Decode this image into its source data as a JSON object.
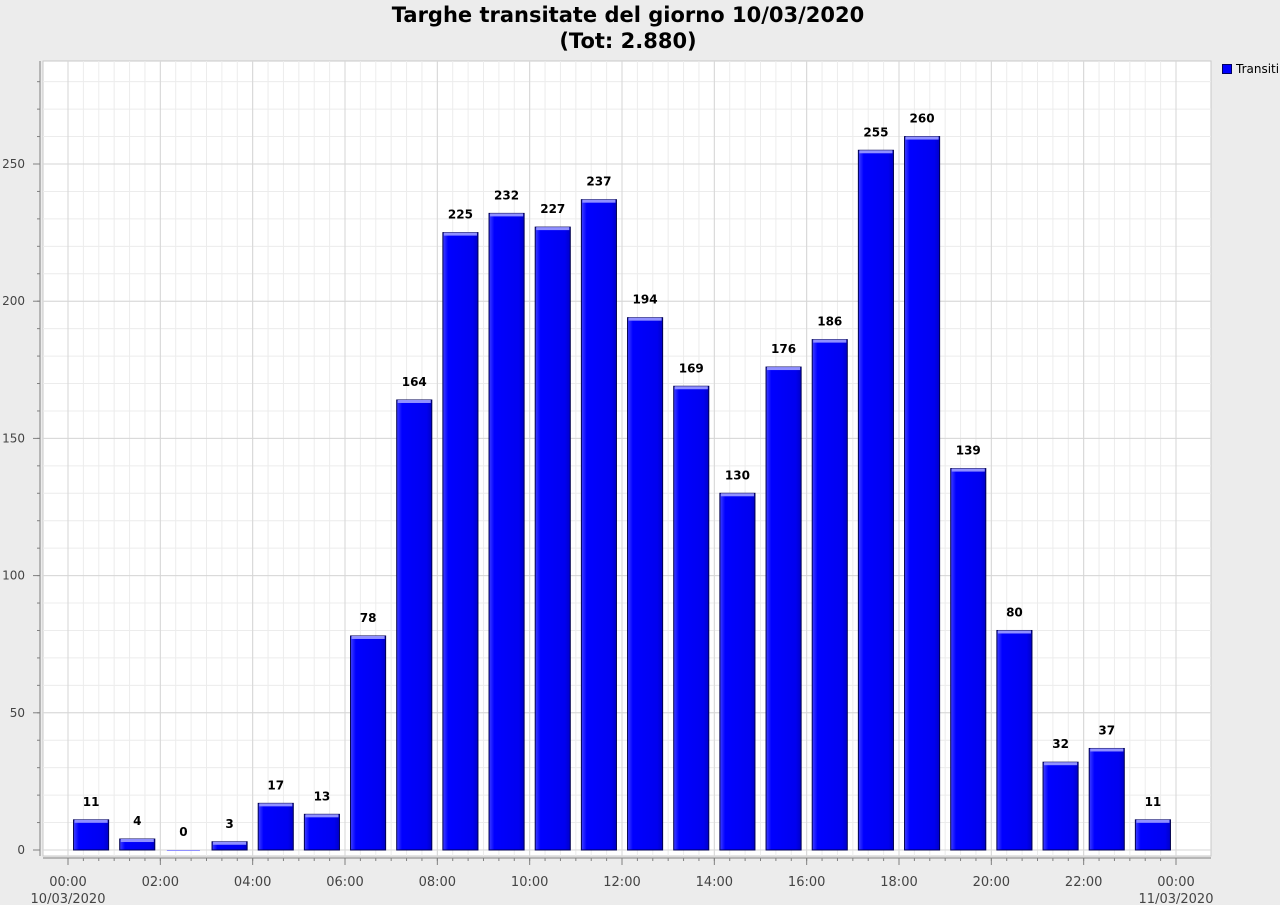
{
  "chart_data": {
    "type": "bar",
    "title": "Targhe transitate del giorno 10/03/2020",
    "subtitle": "(Tot: 2.880)",
    "xlabel": "",
    "ylabel": "",
    "ylim": [
      0,
      285
    ],
    "yticks": [
      0,
      50,
      100,
      150,
      200,
      250
    ],
    "xlim_hours": [
      0,
      24
    ],
    "xticks": [
      {
        "hour": 0,
        "label": "00:00",
        "sub": "10/03/2020"
      },
      {
        "hour": 2,
        "label": "02:00",
        "sub": ""
      },
      {
        "hour": 4,
        "label": "04:00",
        "sub": ""
      },
      {
        "hour": 6,
        "label": "06:00",
        "sub": ""
      },
      {
        "hour": 8,
        "label": "08:00",
        "sub": ""
      },
      {
        "hour": 10,
        "label": "10:00",
        "sub": ""
      },
      {
        "hour": 12,
        "label": "12:00",
        "sub": ""
      },
      {
        "hour": 14,
        "label": "14:00",
        "sub": ""
      },
      {
        "hour": 16,
        "label": "16:00",
        "sub": ""
      },
      {
        "hour": 18,
        "label": "18:00",
        "sub": ""
      },
      {
        "hour": 20,
        "label": "20:00",
        "sub": ""
      },
      {
        "hour": 22,
        "label": "22:00",
        "sub": ""
      },
      {
        "hour": 24,
        "label": "00:00",
        "sub": "11/03/2020"
      }
    ],
    "series": [
      {
        "name": "Transiti",
        "color": "#0000ff",
        "hours": [
          0,
          1,
          2,
          3,
          4,
          5,
          6,
          7,
          8,
          9,
          10,
          11,
          12,
          13,
          14,
          15,
          16,
          17,
          18,
          19,
          20,
          21,
          22,
          23
        ],
        "values": [
          11,
          4,
          0,
          3,
          17,
          13,
          78,
          164,
          225,
          232,
          227,
          237,
          194,
          169,
          130,
          176,
          186,
          255,
          260,
          139,
          80,
          32,
          37,
          11
        ]
      }
    ],
    "grid": true,
    "legend": "right"
  }
}
